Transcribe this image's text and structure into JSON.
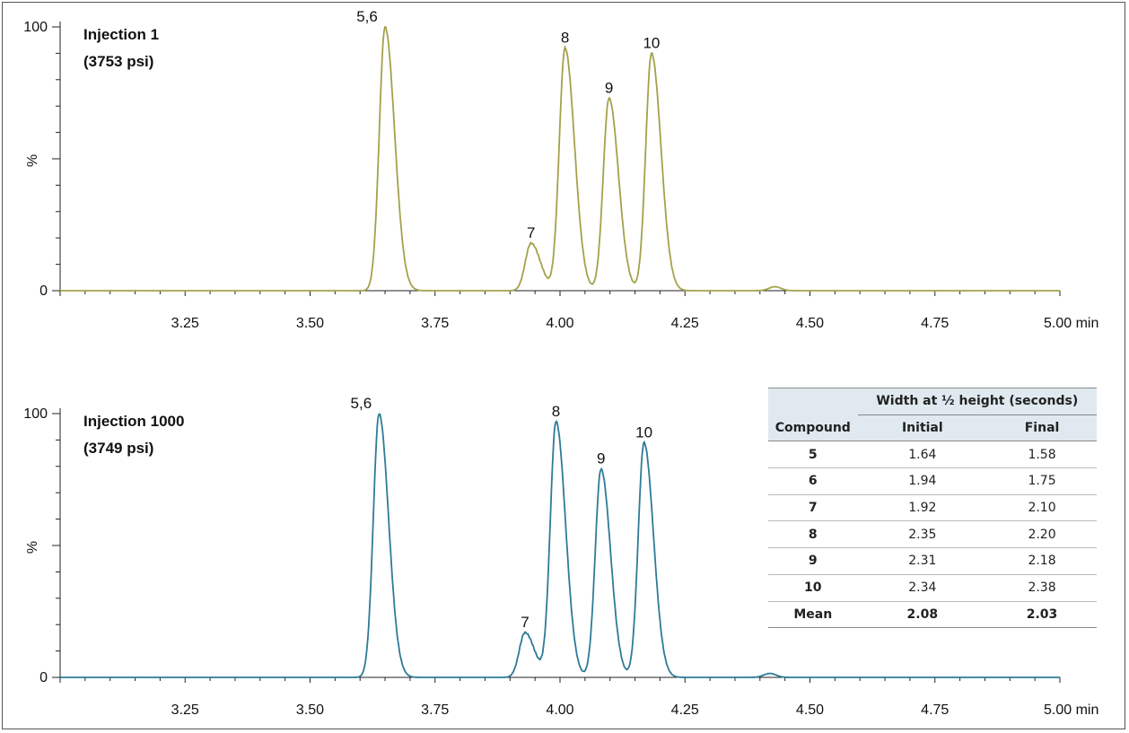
{
  "chart_data": [
    {
      "type": "line",
      "title": "Injection 1",
      "subtitle": "(3753 psi)",
      "xlabel": "min",
      "ylabel": "%",
      "xlim": [
        3.0,
        5.0
      ],
      "ylim": [
        0,
        100
      ],
      "x_ticks": [
        "3.25",
        "3.50",
        "3.75",
        "4.00",
        "4.25",
        "4.50",
        "4.75",
        "5.00 min"
      ],
      "y_ticks": [
        "0",
        "100"
      ],
      "color": "#a3a24b",
      "peaks": [
        {
          "label": "5,6",
          "rt": 3.65,
          "height": 100
        },
        {
          "label": "7",
          "rt": 3.942,
          "height": 18
        },
        {
          "label": "8",
          "rt": 4.01,
          "height": 92
        },
        {
          "label": "9",
          "rt": 4.098,
          "height": 73
        },
        {
          "label": "10",
          "rt": 4.183,
          "height": 90
        }
      ],
      "minor_peaks": [
        {
          "rt": 4.43,
          "height": 1.5
        }
      ]
    },
    {
      "type": "line",
      "title": "Injection 1000",
      "subtitle": "(3749 psi)",
      "xlabel": "min",
      "ylabel": "%",
      "xlim": [
        3.0,
        5.0
      ],
      "ylim": [
        0,
        100
      ],
      "x_ticks": [
        "3.25",
        "3.50",
        "3.75",
        "4.00",
        "4.25",
        "4.50",
        "4.75",
        "5.00 min"
      ],
      "y_ticks": [
        "0",
        "100"
      ],
      "color": "#2e7b95",
      "peaks": [
        {
          "label": "5,6",
          "rt": 3.638,
          "height": 100
        },
        {
          "label": "7",
          "rt": 3.93,
          "height": 17
        },
        {
          "label": "8",
          "rt": 3.992,
          "height": 97
        },
        {
          "label": "9",
          "rt": 4.082,
          "height": 79
        },
        {
          "label": "10",
          "rt": 4.168,
          "height": 89
        }
      ],
      "minor_peaks": [
        {
          "rt": 4.42,
          "height": 1.5
        }
      ]
    }
  ],
  "table": {
    "group_header": "Width at ½ height (seconds)",
    "columns": [
      "Compound",
      "Initial",
      "Final"
    ],
    "rows": [
      [
        "5",
        "1.64",
        "1.58"
      ],
      [
        "6",
        "1.94",
        "1.75"
      ],
      [
        "7",
        "1.92",
        "2.10"
      ],
      [
        "8",
        "2.35",
        "2.20"
      ],
      [
        "9",
        "2.31",
        "2.18"
      ],
      [
        "10",
        "2.34",
        "2.38"
      ]
    ],
    "mean_row": [
      "Mean",
      "2.08",
      "2.03"
    ]
  }
}
